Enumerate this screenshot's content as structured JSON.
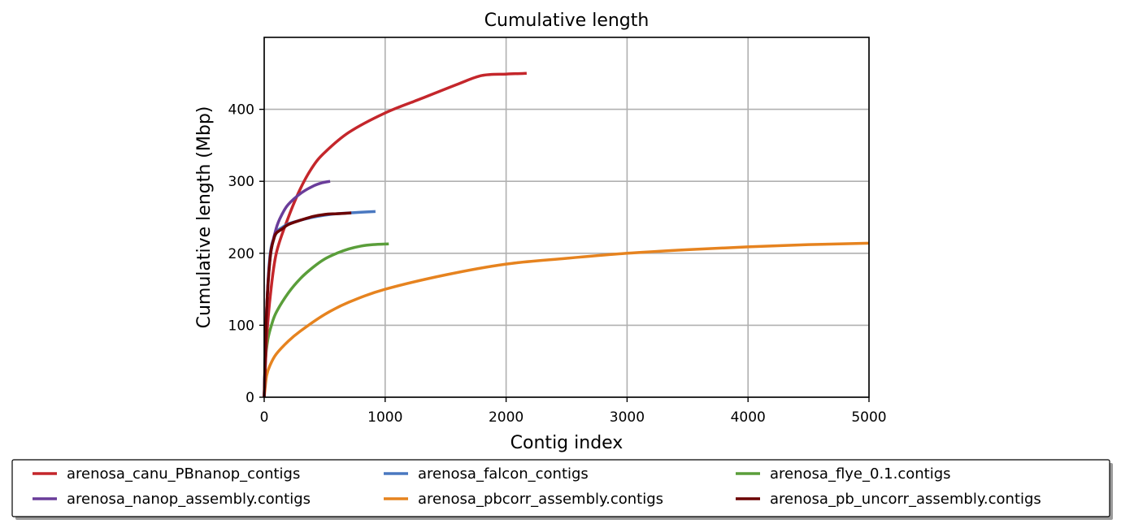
{
  "chart_data": {
    "type": "line",
    "title": "Cumulative length",
    "xlabel": "Contig index",
    "ylabel": "Cumulative length (Mbp)",
    "xlim": [
      0,
      5000
    ],
    "ylim": [
      0,
      500
    ],
    "xticks": [
      0,
      1000,
      2000,
      3000,
      4000,
      5000
    ],
    "yticks": [
      0,
      100,
      200,
      300,
      400
    ],
    "grid": true,
    "legend_position": "bottom",
    "series": [
      {
        "name": "arenosa_canu_PBnanop_contigs",
        "color": "#c4262b",
        "points": [
          [
            0,
            0
          ],
          [
            20,
            80
          ],
          [
            50,
            140
          ],
          [
            100,
            200
          ],
          [
            200,
            250
          ],
          [
            300,
            290
          ],
          [
            400,
            320
          ],
          [
            500,
            340
          ],
          [
            700,
            368
          ],
          [
            1000,
            395
          ],
          [
            1300,
            415
          ],
          [
            1600,
            435
          ],
          [
            1800,
            447
          ],
          [
            2000,
            449
          ],
          [
            2170,
            450
          ]
        ]
      },
      {
        "name": "arenosa_falcon_contigs",
        "color": "#4a78c0",
        "points": [
          [
            0,
            0
          ],
          [
            20,
            120
          ],
          [
            50,
            200
          ],
          [
            100,
            228
          ],
          [
            150,
            236
          ],
          [
            200,
            241
          ],
          [
            300,
            246
          ],
          [
            400,
            250
          ],
          [
            500,
            253
          ],
          [
            600,
            255
          ],
          [
            700,
            256
          ],
          [
            800,
            257
          ],
          [
            920,
            258
          ]
        ]
      },
      {
        "name": "arenosa_flye_0.1.contigs",
        "color": "#5a9e3a",
        "points": [
          [
            0,
            0
          ],
          [
            10,
            50
          ],
          [
            30,
            80
          ],
          [
            60,
            100
          ],
          [
            100,
            118
          ],
          [
            200,
            145
          ],
          [
            300,
            165
          ],
          [
            400,
            180
          ],
          [
            500,
            192
          ],
          [
            600,
            200
          ],
          [
            700,
            206
          ],
          [
            800,
            210
          ],
          [
            900,
            212
          ],
          [
            1030,
            213
          ]
        ]
      },
      {
        "name": "arenosa_nanop_assembly.contigs",
        "color": "#6a3d9a",
        "points": [
          [
            0,
            0
          ],
          [
            20,
            120
          ],
          [
            50,
            195
          ],
          [
            100,
            235
          ],
          [
            150,
            255
          ],
          [
            200,
            268
          ],
          [
            300,
            283
          ],
          [
            400,
            293
          ],
          [
            480,
            298
          ],
          [
            545,
            300
          ]
        ]
      },
      {
        "name": "arenosa_pbcorr_assembly.contigs",
        "color": "#e6831f",
        "points": [
          [
            0,
            0
          ],
          [
            20,
            30
          ],
          [
            50,
            45
          ],
          [
            100,
            60
          ],
          [
            200,
            78
          ],
          [
            300,
            92
          ],
          [
            500,
            115
          ],
          [
            700,
            132
          ],
          [
            1000,
            150
          ],
          [
            1500,
            170
          ],
          [
            2000,
            185
          ],
          [
            2500,
            193
          ],
          [
            3000,
            200
          ],
          [
            3500,
            205
          ],
          [
            4000,
            209
          ],
          [
            4500,
            212
          ],
          [
            5000,
            214
          ]
        ]
      },
      {
        "name": "arenosa_pb_uncorr_assembly.contigs",
        "color": "#6b0000",
        "points": [
          [
            0,
            0
          ],
          [
            20,
            120
          ],
          [
            50,
            195
          ],
          [
            80,
            220
          ],
          [
            100,
            228
          ],
          [
            150,
            234
          ],
          [
            200,
            240
          ],
          [
            300,
            246
          ],
          [
            400,
            251
          ],
          [
            500,
            254
          ],
          [
            600,
            255
          ],
          [
            720,
            256
          ]
        ]
      }
    ]
  }
}
